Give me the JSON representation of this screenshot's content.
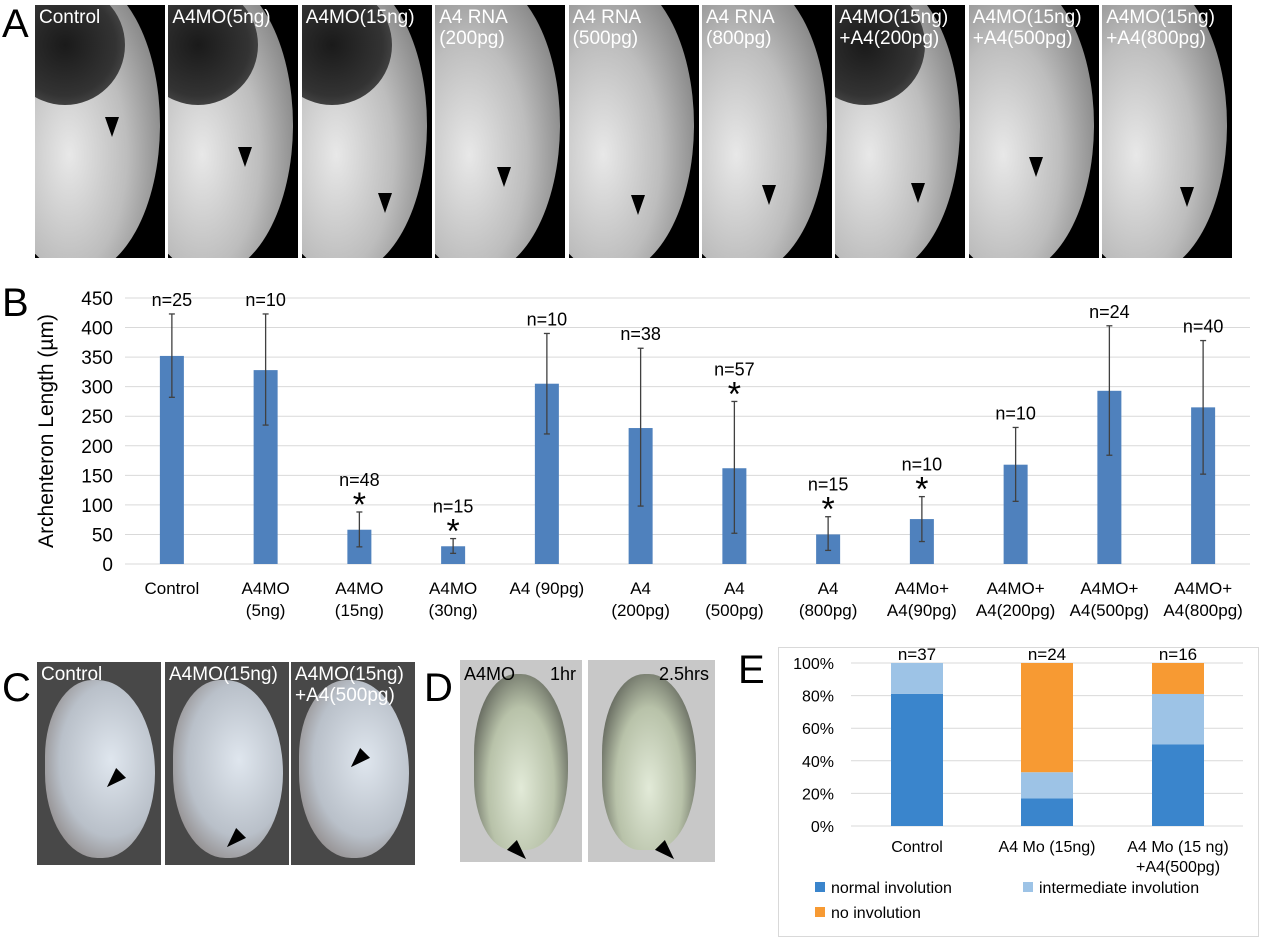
{
  "panel_letters": {
    "a": "A",
    "b": "B",
    "c": "C",
    "d": "D",
    "e": "E"
  },
  "panel_a": {
    "images": [
      {
        "label": "Control"
      },
      {
        "label": "A4MO(5ng)"
      },
      {
        "label": "A4MO(15ng)"
      },
      {
        "label": "A4 RNA\n(200pg)"
      },
      {
        "label": "A4 RNA\n(500pg)"
      },
      {
        "label": "A4 RNA\n(800pg)"
      },
      {
        "label": "A4MO(15ng)\n+A4(200pg)"
      },
      {
        "label": "A4MO(15ng)\n+A4(500pg)"
      },
      {
        "label": "A4MO(15ng)\n+A4(800pg)"
      }
    ],
    "marker_icon": "arrowhead-down-icon"
  },
  "panel_c": {
    "images": [
      {
        "label": "Control"
      },
      {
        "label": "A4MO(15ng)"
      },
      {
        "label": "A4MO(15ng)\n+A4(500pg)"
      }
    ]
  },
  "panel_d": {
    "label": "A4MO",
    "images": [
      {
        "label": "1hr"
      },
      {
        "label": "2.5hrs"
      }
    ]
  },
  "chart_data": [
    {
      "panel": "B",
      "type": "bar",
      "ylabel": "Archenteron Length (µm)",
      "ylim": [
        0,
        450
      ],
      "yticks": [
        0,
        50,
        100,
        150,
        200,
        250,
        300,
        350,
        400,
        450
      ],
      "grid": true,
      "color": "#4f81bd",
      "categories": [
        [
          "Control"
        ],
        [
          "A4MO",
          "(5ng)"
        ],
        [
          "A4MO",
          "(15ng)"
        ],
        [
          "A4MO",
          "(30ng)"
        ],
        [
          "A4 (90pg)"
        ],
        [
          "A4",
          "(200pg)"
        ],
        [
          "A4",
          "(500pg)"
        ],
        [
          "A4",
          "(800pg)"
        ],
        [
          "A4Mo+",
          "A4(90pg)"
        ],
        [
          "A4MO+",
          "A4(200pg)"
        ],
        [
          "A4MO+",
          "A4(500pg)"
        ],
        [
          "A4MO+",
          "A4(800pg)"
        ]
      ],
      "values": [
        352,
        328,
        58,
        30,
        305,
        230,
        162,
        50,
        76,
        168,
        293,
        265
      ],
      "error_low": [
        282,
        235,
        29,
        18,
        220,
        98,
        52,
        23,
        38,
        106,
        184,
        152
      ],
      "error_high": [
        423,
        423,
        88,
        43,
        390,
        365,
        275,
        80,
        114,
        231,
        403,
        378
      ],
      "n_labels": [
        "n=25",
        "n=10",
        "n=48",
        "n=15",
        "n=10",
        "n=38",
        "n=57",
        "n=15",
        "n=10",
        "n=10",
        "n=24",
        "n=40"
      ],
      "significant": [
        false,
        false,
        true,
        true,
        false,
        false,
        true,
        true,
        true,
        false,
        false,
        false
      ],
      "significance_mark": "*"
    },
    {
      "panel": "E",
      "type": "bar",
      "stacked": true,
      "ylim": [
        0,
        100
      ],
      "yticks": [
        "0%",
        "20%",
        "40%",
        "60%",
        "80%",
        "100%"
      ],
      "grid": true,
      "legend": "bottom",
      "categories": [
        [
          "Control"
        ],
        [
          "A4 Mo (15ng)"
        ],
        [
          "A4 Mo (15 ng)",
          "+A4(500pg)"
        ]
      ],
      "n_labels": [
        "n=37",
        "n=24",
        "n=16"
      ],
      "series": [
        {
          "name": "normal involution",
          "color": "#3a85cc",
          "values": [
            81,
            17,
            50
          ]
        },
        {
          "name": "intermediate involution",
          "color": "#9dc3e6",
          "values": [
            19,
            16,
            31
          ]
        },
        {
          "name": "no involution",
          "color": "#f79a33",
          "values": [
            0,
            67,
            19
          ]
        }
      ]
    }
  ]
}
